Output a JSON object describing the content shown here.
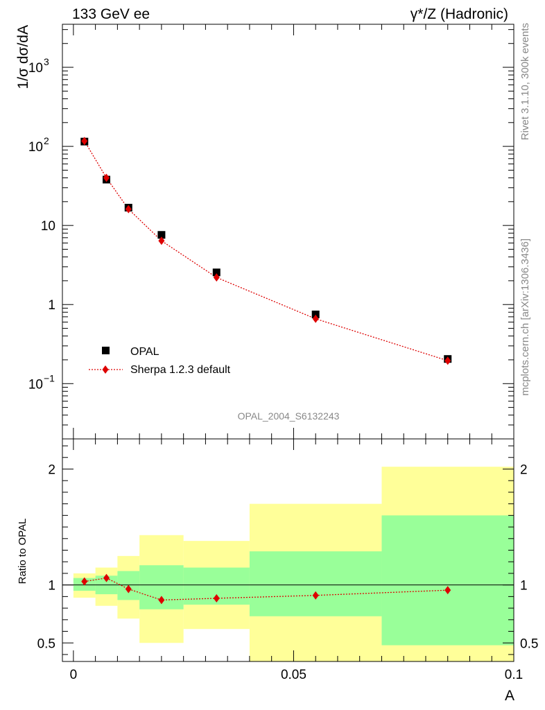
{
  "header": {
    "left": "133 GeV ee",
    "right": "γ*/Z (Hadronic)"
  },
  "side_text": {
    "rivet": "Rivet 3.1.10,  300k events",
    "mcplots": "mcplots.cern.ch [arXiv:1306.3436]"
  },
  "watermark": "OPAL_2004_S6132243",
  "colors": {
    "data": "#000000",
    "mc": "#dd0000",
    "band_inner": "#99ff99",
    "band_outer": "#ffff99"
  },
  "chart_data": [
    {
      "type": "scatter",
      "ylabel": "1/σ dσ/dA",
      "yscale": "log",
      "ylim": [
        0.02,
        3500
      ],
      "xlim": [
        -0.0025,
        0.1
      ],
      "y_ticks": [
        {
          "value": 0.1,
          "base": "10",
          "exp": "−1"
        },
        {
          "value": 1,
          "label": "1"
        },
        {
          "value": 10,
          "label": "10"
        },
        {
          "value": 100,
          "base": "10",
          "exp": "2"
        },
        {
          "value": 1000,
          "base": "10",
          "exp": "3"
        }
      ],
      "legend": {
        "position": "bottom-left",
        "entries": [
          "OPAL",
          "Sherpa 1.2.3 default"
        ]
      },
      "series": [
        {
          "name": "OPAL",
          "marker": "square",
          "x": [
            0.0025,
            0.0075,
            0.0125,
            0.02,
            0.0325,
            0.055,
            0.085
          ],
          "y": [
            115,
            38,
            16.8,
            7.6,
            2.55,
            0.75,
            0.205
          ]
        },
        {
          "name": "Sherpa 1.2.3 default",
          "marker": "diamond",
          "line": "dotted",
          "x": [
            0.0025,
            0.0075,
            0.0125,
            0.02,
            0.0325,
            0.055,
            0.085
          ],
          "y": [
            117,
            40,
            16.1,
            6.4,
            2.2,
            0.66,
            0.195
          ]
        }
      ]
    },
    {
      "type": "scatter",
      "ylabel": "Ratio to OPAL",
      "xlabel": "A",
      "ylim": [
        0.34,
        2.26
      ],
      "xlim": [
        -0.0025,
        0.1
      ],
      "y_ticks": [
        0.5,
        1,
        2
      ],
      "x_ticks": [
        {
          "value": 0,
          "label": "0"
        },
        {
          "value": 0.05,
          "label": "0.05"
        },
        {
          "value": 0.1,
          "label": "0.1"
        }
      ],
      "reference_line": 1,
      "bands": [
        {
          "x0": 0.0,
          "x1": 0.005,
          "inner": [
            0.95,
            1.06
          ],
          "outer": [
            0.89,
            1.1
          ]
        },
        {
          "x0": 0.005,
          "x1": 0.01,
          "inner": [
            0.92,
            1.08
          ],
          "outer": [
            0.82,
            1.15
          ]
        },
        {
          "x0": 0.01,
          "x1": 0.015,
          "inner": [
            0.87,
            1.12
          ],
          "outer": [
            0.71,
            1.25
          ]
        },
        {
          "x0": 0.015,
          "x1": 0.025,
          "inner": [
            0.79,
            1.17
          ],
          "outer": [
            0.5,
            1.43
          ]
        },
        {
          "x0": 0.025,
          "x1": 0.04,
          "inner": [
            0.83,
            1.15
          ],
          "outer": [
            0.62,
            1.38
          ]
        },
        {
          "x0": 0.04,
          "x1": 0.07,
          "inner": [
            0.73,
            1.29
          ],
          "outer": [
            0.34,
            1.7
          ]
        },
        {
          "x0": 0.07,
          "x1": 0.1,
          "inner": [
            0.48,
            1.6
          ],
          "outer": [
            0.34,
            2.02
          ]
        }
      ],
      "series": [
        {
          "name": "Sherpa 1.2.3 default",
          "marker": "diamond",
          "line": "dotted",
          "x": [
            0.0025,
            0.0075,
            0.0125,
            0.02,
            0.0325,
            0.055,
            0.085
          ],
          "y": [
            1.03,
            1.06,
            0.965,
            0.87,
            0.885,
            0.91,
            0.955
          ]
        }
      ]
    }
  ]
}
